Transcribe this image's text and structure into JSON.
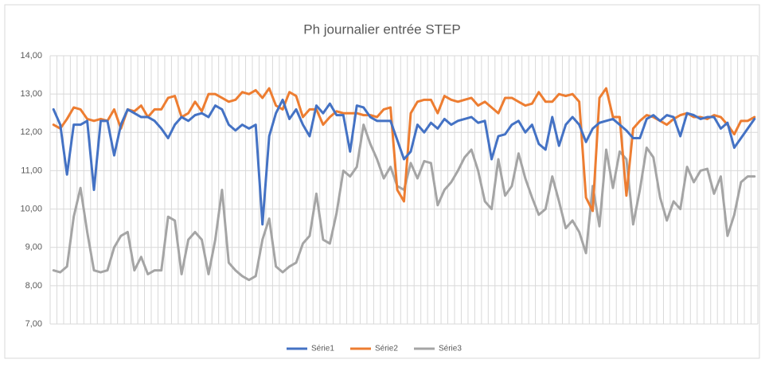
{
  "chart_data": {
    "type": "line",
    "title": "Ph journalier entrée STEP",
    "ylim": [
      7,
      14
    ],
    "yticks": [
      {
        "value": 7,
        "label": "7,00"
      },
      {
        "value": 8,
        "label": "8,00"
      },
      {
        "value": 9,
        "label": "9,00"
      },
      {
        "value": 10,
        "label": "10,00"
      },
      {
        "value": 11,
        "label": "11,00"
      },
      {
        "value": 12,
        "label": "12,00"
      },
      {
        "value": 13,
        "label": "13,00"
      },
      {
        "value": 14,
        "label": "14,00"
      }
    ],
    "grid": true,
    "legend": "bottom",
    "series": [
      {
        "name": "Série1",
        "color": "#4472c4",
        "values": [
          12.6,
          12.2,
          10.9,
          12.2,
          12.2,
          12.3,
          10.5,
          12.3,
          12.3,
          11.4,
          12.2,
          12.6,
          12.5,
          12.4,
          12.4,
          12.3,
          12.1,
          11.85,
          12.2,
          12.4,
          12.3,
          12.45,
          12.5,
          12.4,
          12.7,
          12.6,
          12.2,
          12.05,
          12.2,
          12.1,
          12.2,
          9.6,
          11.9,
          12.5,
          12.85,
          12.35,
          12.6,
          12.2,
          11.9,
          12.7,
          12.5,
          12.75,
          12.45,
          12.45,
          11.5,
          12.7,
          12.65,
          12.4,
          12.3,
          12.3,
          12.3,
          11.8,
          11.3,
          11.5,
          12.2,
          12.0,
          12.25,
          12.1,
          12.35,
          12.2,
          12.3,
          12.35,
          12.4,
          12.25,
          12.3,
          11.3,
          11.9,
          11.95,
          12.2,
          12.3,
          12.0,
          12.2,
          11.7,
          11.55,
          12.4,
          11.65,
          12.2,
          12.4,
          12.2,
          11.75,
          12.1,
          12.25,
          12.3,
          12.35,
          12.2,
          12.05,
          11.85,
          11.85,
          12.35,
          12.45,
          12.3,
          12.45,
          12.4,
          11.9,
          12.5,
          12.45,
          12.35,
          12.4,
          12.4,
          12.1,
          12.25,
          11.6,
          11.85,
          12.1,
          12.35
        ]
      },
      {
        "name": "Série2",
        "color": "#ed7d31",
        "values": [
          12.2,
          12.1,
          12.35,
          12.65,
          12.6,
          12.35,
          12.3,
          12.35,
          12.3,
          12.6,
          12.1,
          12.6,
          12.55,
          12.7,
          12.4,
          12.6,
          12.6,
          12.9,
          12.95,
          12.4,
          12.5,
          12.8,
          12.55,
          13.0,
          13.0,
          12.9,
          12.8,
          12.85,
          13.05,
          13.0,
          13.1,
          12.9,
          13.15,
          12.7,
          12.6,
          13.05,
          12.95,
          12.4,
          12.6,
          12.6,
          12.2,
          12.4,
          12.55,
          12.5,
          12.5,
          12.5,
          12.45,
          12.45,
          12.4,
          12.6,
          12.65,
          10.5,
          10.2,
          12.5,
          12.8,
          12.85,
          12.85,
          12.5,
          12.95,
          12.85,
          12.8,
          12.85,
          12.9,
          12.7,
          12.8,
          12.65,
          12.5,
          12.9,
          12.9,
          12.8,
          12.7,
          12.75,
          13.05,
          12.8,
          12.8,
          13.0,
          12.95,
          13.0,
          12.8,
          10.3,
          9.95,
          12.9,
          13.15,
          12.4,
          12.4,
          10.35,
          12.1,
          12.3,
          12.45,
          12.4,
          12.3,
          12.2,
          12.35,
          12.45,
          12.5,
          12.4,
          12.4,
          12.35,
          12.45,
          12.4,
          12.2,
          11.95,
          12.3,
          12.3,
          12.4
        ]
      },
      {
        "name": "Série3",
        "color": "#a5a5a5",
        "values": [
          8.4,
          8.35,
          8.5,
          9.8,
          10.55,
          9.4,
          8.4,
          8.35,
          8.4,
          9.0,
          9.3,
          9.4,
          8.4,
          8.75,
          8.3,
          8.4,
          8.4,
          9.8,
          9.7,
          8.3,
          9.2,
          9.4,
          9.2,
          8.3,
          9.2,
          10.5,
          8.6,
          8.4,
          8.25,
          8.15,
          8.25,
          9.2,
          9.75,
          8.5,
          8.35,
          8.5,
          8.6,
          9.1,
          9.3,
          10.4,
          9.2,
          9.1,
          9.9,
          11.0,
          10.85,
          11.1,
          12.2,
          11.7,
          11.3,
          10.8,
          11.1,
          10.6,
          10.5,
          11.2,
          10.8,
          11.25,
          11.2,
          10.1,
          10.5,
          10.7,
          11.0,
          11.35,
          11.55,
          11.0,
          10.2,
          10.0,
          11.3,
          10.35,
          10.6,
          11.45,
          10.8,
          10.3,
          9.85,
          10.0,
          10.85,
          10.2,
          9.5,
          9.7,
          9.4,
          8.85,
          10.6,
          9.55,
          11.55,
          10.55,
          11.5,
          11.3,
          9.6,
          10.5,
          11.6,
          11.35,
          10.3,
          9.7,
          10.2,
          10.0,
          11.1,
          10.7,
          11.0,
          11.05,
          10.4,
          10.85,
          9.3,
          9.85,
          10.7,
          10.85,
          10.85
        ]
      }
    ]
  }
}
